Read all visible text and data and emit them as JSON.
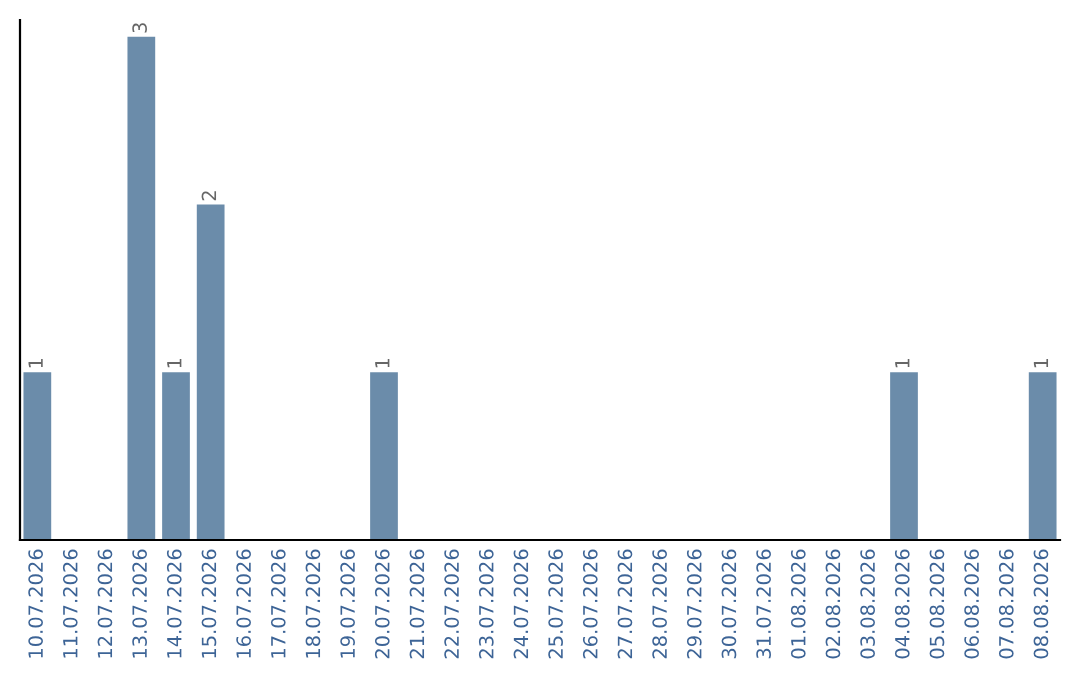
{
  "chart_data": {
    "type": "bar",
    "categories": [
      "10.07.2026",
      "11.07.2026",
      "12.07.2026",
      "13.07.2026",
      "14.07.2026",
      "15.07.2026",
      "16.07.2026",
      "17.07.2026",
      "18.07.2026",
      "19.07.2026",
      "20.07.2026",
      "21.07.2026",
      "22.07.2026",
      "23.07.2026",
      "24.07.2026",
      "25.07.2026",
      "26.07.2026",
      "27.07.2026",
      "28.07.2026",
      "29.07.2026",
      "30.07.2026",
      "31.07.2026",
      "01.08.2026",
      "02.08.2026",
      "03.08.2026",
      "04.08.2026",
      "05.08.2026",
      "06.08.2026",
      "07.08.2026",
      "08.08.2026"
    ],
    "values": [
      1,
      0,
      0,
      3,
      1,
      2,
      0,
      0,
      0,
      0,
      1,
      0,
      0,
      0,
      0,
      0,
      0,
      0,
      0,
      0,
      0,
      0,
      0,
      0,
      0,
      1,
      0,
      0,
      0,
      1
    ],
    "value_labels": [
      "1",
      null,
      null,
      "3",
      "1",
      "2",
      null,
      null,
      null,
      null,
      "1",
      null,
      null,
      null,
      null,
      null,
      null,
      null,
      null,
      null,
      null,
      null,
      null,
      null,
      null,
      "1",
      null,
      null,
      null,
      "1"
    ],
    "color": "#6b8caa",
    "ylim": [
      0,
      3.1
    ],
    "tick_labels": "x",
    "grid": false,
    "legend": false
  }
}
